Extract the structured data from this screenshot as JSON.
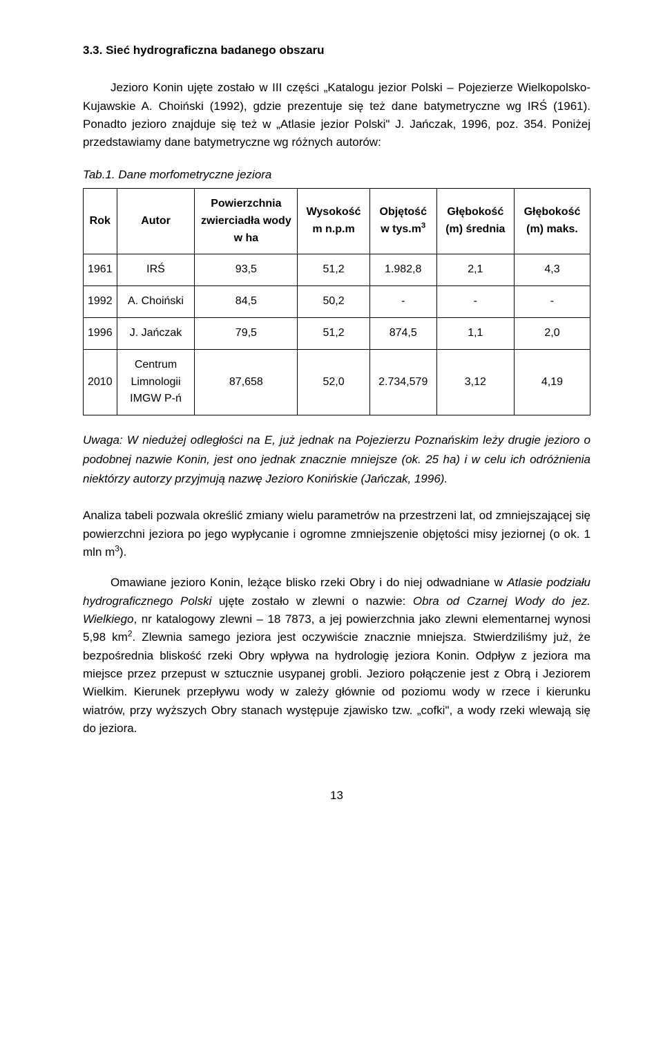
{
  "heading": "3.3. Sieć hydrograficzna badanego obszaru",
  "para1": "Jezioro Konin ujęte zostało w III części „Katalogu jezior Polski – Pojezierze Wielkopolsko-Kujawskie A. Choiński (1992), gdzie prezentuje się też dane batymetryczne wg IRŚ (1961). Ponadto jezioro znajduje się też w „Atlasie jezior Polski\" J. Jańczak, 1996, poz. 354. Poniżej przedstawiamy dane batymetryczne wg różnych autorów:",
  "table": {
    "caption": "Tab.1. Dane morfometryczne jeziora",
    "headers": {
      "rok": "Rok",
      "autor": "Autor",
      "pow": "Powierzchnia zwierciadła wody w ha",
      "wys": "Wysokość m n.p.m",
      "obj_pre": "Objętość w tys.m",
      "obj_sup": "3",
      "gs": "Głębokość (m) średnia",
      "gm": "Głębokość (m) maks."
    },
    "rows": [
      {
        "rok": "1961",
        "autor": "IRŚ",
        "pow": "93,5",
        "wys": "51,2",
        "obj": "1.982,8",
        "gs": "2,1",
        "gm": "4,3"
      },
      {
        "rok": "1992",
        "autor": "A. Choiński",
        "pow": "84,5",
        "wys": "50,2",
        "obj": "-",
        "gs": "-",
        "gm": "-"
      },
      {
        "rok": "1996",
        "autor": "J. Jańczak",
        "pow": "79,5",
        "wys": "51,2",
        "obj": "874,5",
        "gs": "1,1",
        "gm": "2,0"
      },
      {
        "rok": "2010",
        "autor": "Centrum Limnologii IMGW P-ń",
        "pow": "87,658",
        "wys": "52,0",
        "obj": "2.734,579",
        "gs": "3,12",
        "gm": "4,19"
      }
    ]
  },
  "note": "Uwaga: W niedużej odległości na E, już jednak na Pojezierzu Poznańskim leży drugie jezioro o podobnej nazwie Konin, jest ono jednak znacznie mniejsze (ok. 25 ha) i w celu ich odróżnienia niektórzy autorzy przyjmują nazwę Jezioro Konińskie (Jańczak, 1996).",
  "para2_pre": "Analiza tabeli pozwala określić zmiany wielu parametrów na przestrzeni lat, od zmniejszającej się powierzchni jeziora po jego wypłycanie i ogromne zmniejszenie objętości misy jeziornej (o ok. 1 mln m",
  "para2_sup": "3",
  "para2_post": ").",
  "para3_pre": "Omawiane jezioro Konin, leżące blisko rzeki Obry i do niej odwadniane w ",
  "para3_i1": "Atlasie podziału hydrograficznego Polski",
  "para3_mid1": " ujęte zostało w zlewni o nazwie: ",
  "para3_i2": "Obra od Czarnej Wody do jez. Wielkiego",
  "para3_mid2": ", nr katalogowy zlewni – 18 7873, a jej powierzchnia jako zlewni elementarnej wynosi 5,98 km",
  "para3_sup": "2",
  "para3_post": ". Zlewnia samego jeziora jest oczywiście znacznie mniejsza. Stwierdziliśmy już, że bezpośrednia bliskość rzeki Obry wpływa na hydrologię jeziora Konin. Odpływ z jeziora ma miejsce przez przepust w sztucznie usypanej grobli. Jezioro połączenie jest z Obrą i Jeziorem Wielkim. Kierunek przepływu wody w zależy głównie od poziomu wody w rzece i kierunku wiatrów, przy wyższych Obry stanach występuje zjawisko tzw. „cofki\", a wody rzeki wlewają się do jeziora.",
  "page_number": "13",
  "colors": {
    "text": "#000000",
    "background": "#ffffff",
    "border": "#000000"
  },
  "typography": {
    "body_fontsize_pt": 12,
    "heading_weight": "bold",
    "font_family": "Arial"
  }
}
